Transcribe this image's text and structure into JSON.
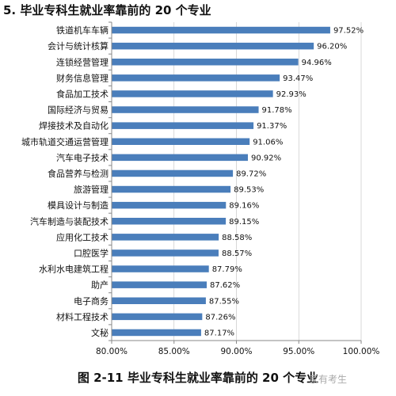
{
  "header": {
    "title": "5. 毕业专科生就业率靠前的 20 个专业"
  },
  "caption": "图 2-11   毕业专科生就业率靠前的 20 个专业",
  "watermark": "家有考生",
  "colors": {
    "bar": "#4A7EBB",
    "axis": "#888888",
    "grid": "#bfbfbf"
  },
  "chart_data": {
    "type": "bar",
    "orientation": "horizontal",
    "title": "",
    "xlabel": "",
    "ylabel": "",
    "xlim": [
      80,
      100
    ],
    "x_ticks": [
      "80.00%",
      "85.00%",
      "90.00%",
      "95.00%",
      "100.00%"
    ],
    "x_tick_values": [
      80,
      85,
      90,
      95,
      100
    ],
    "grid": true,
    "categories": [
      "铁道机车车辆",
      "会计与统计核算",
      "连锁经营管理",
      "财务信息管理",
      "食品加工技术",
      "国际经济与贸易",
      "焊接技术及自动化",
      "城市轨道交通运营管理",
      "汽车电子技术",
      "食品营养与检测",
      "旅游管理",
      "模具设计与制造",
      "汽车制造与装配技术",
      "应用化工技术",
      "口腔医学",
      "水利水电建筑工程",
      "助产",
      "电子商务",
      "材料工程技术",
      "文秘"
    ],
    "values": [
      97.52,
      96.2,
      94.96,
      93.47,
      92.93,
      91.78,
      91.37,
      91.06,
      90.92,
      89.72,
      89.53,
      89.16,
      89.15,
      88.58,
      88.57,
      87.79,
      87.62,
      87.55,
      87.26,
      87.17
    ],
    "data_labels": [
      "97.52%",
      "96.20%",
      "94.96%",
      "93.47%",
      "92.93%",
      "91.78%",
      "91.37%",
      "91.06%",
      "90.92%",
      "89.72%",
      "89.53%",
      "89.16%",
      "89.15%",
      "88.58%",
      "88.57%",
      "87.79%",
      "87.62%",
      "87.55%",
      "87.26%",
      "87.17%"
    ]
  }
}
